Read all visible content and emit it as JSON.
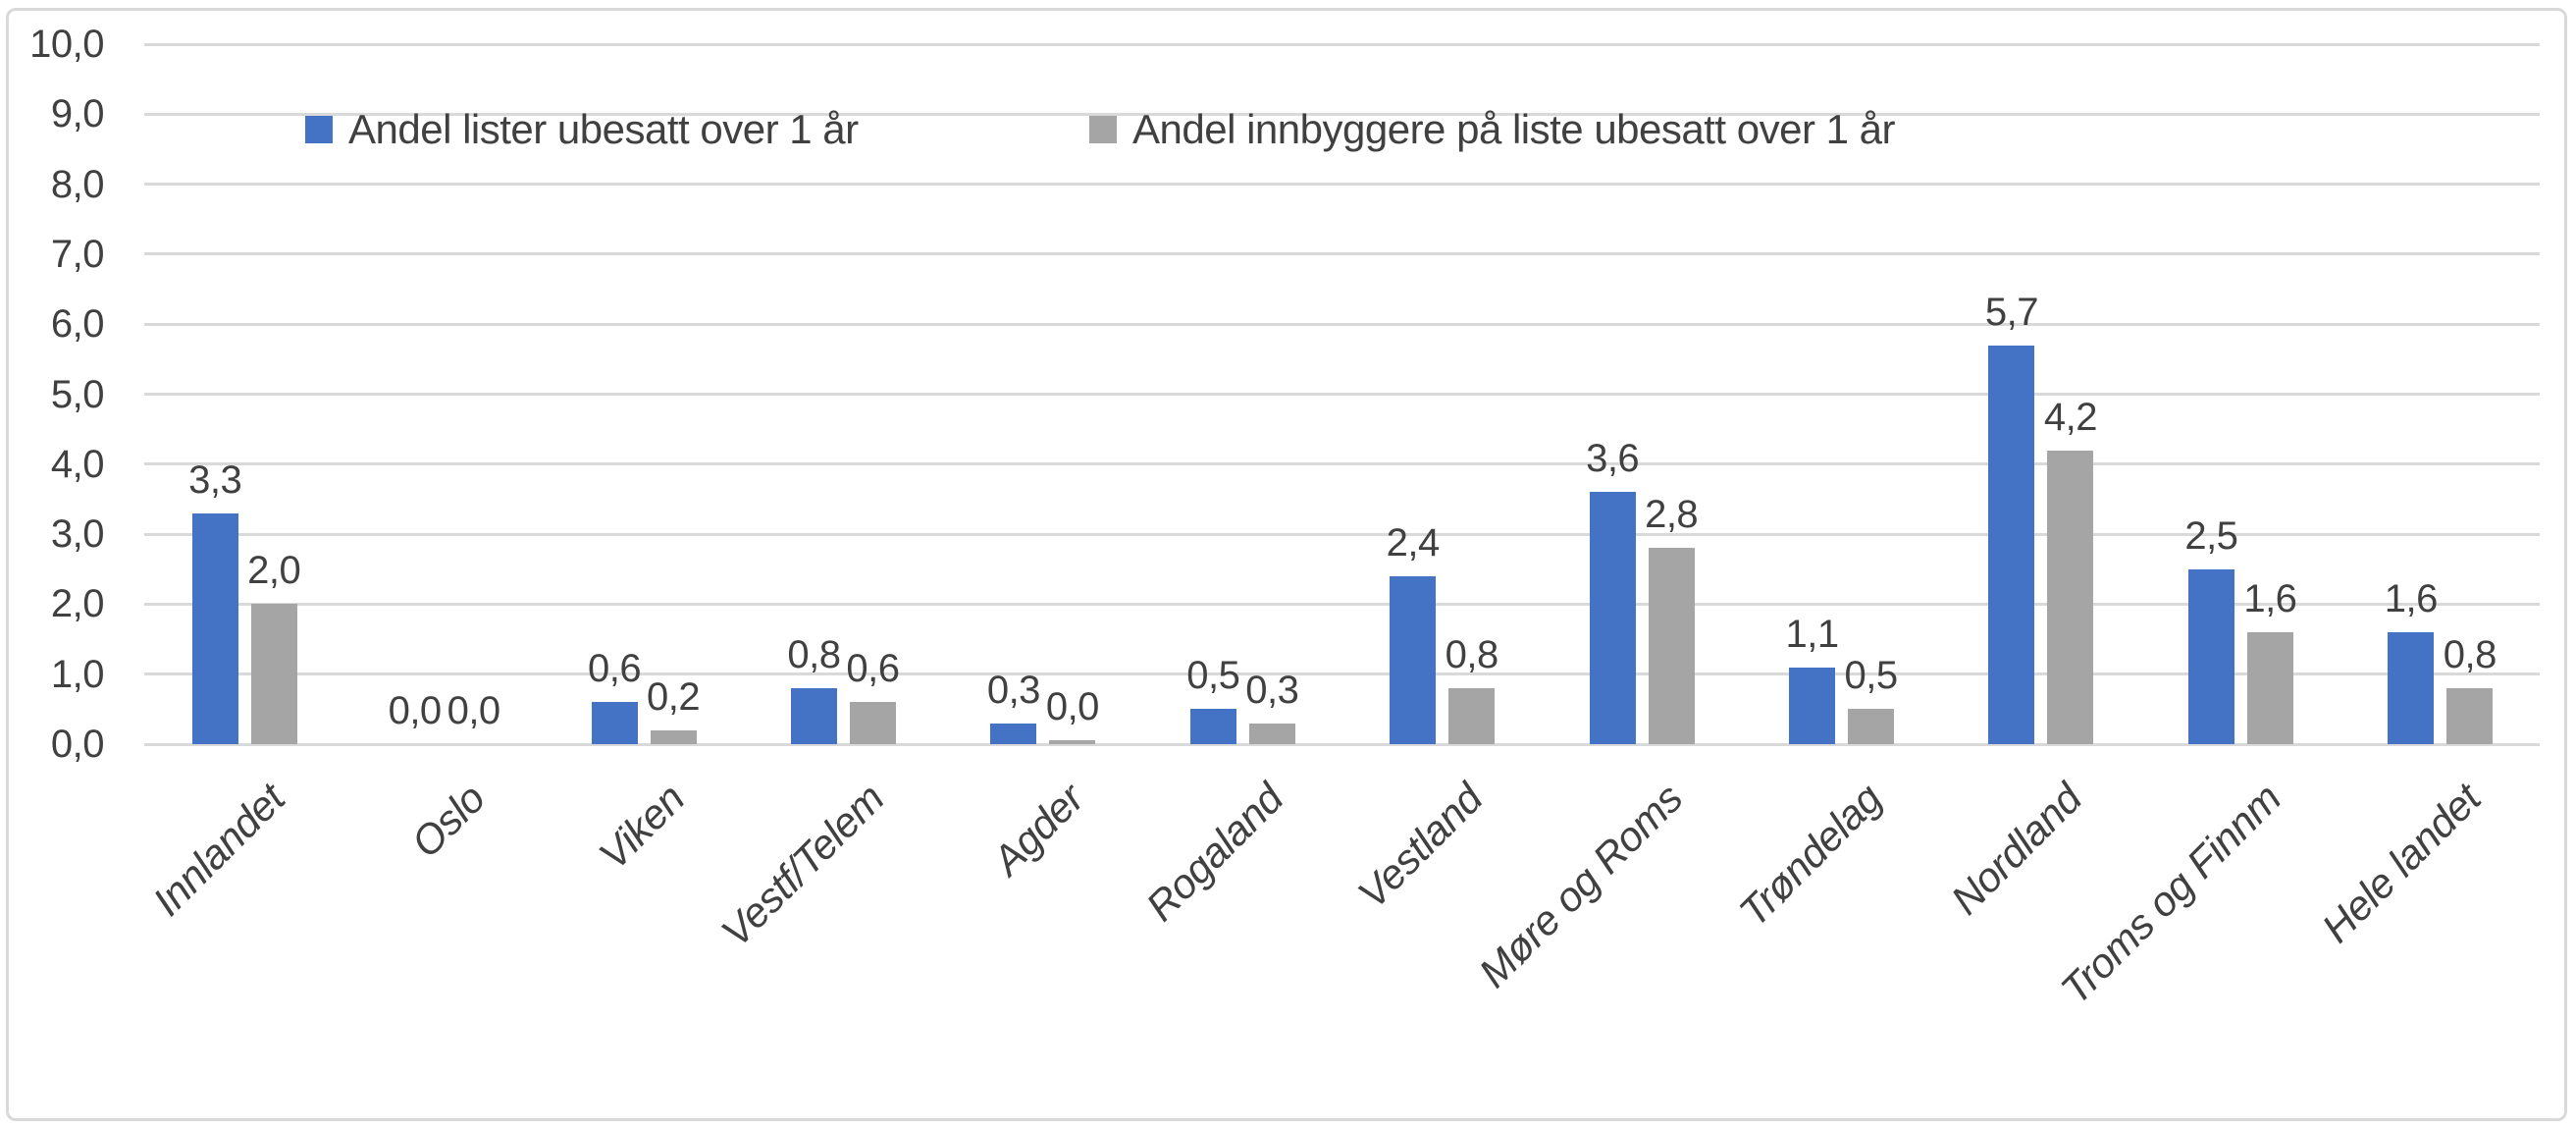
{
  "chart_data": {
    "type": "bar",
    "categories": [
      "Innlandet",
      "Oslo",
      "Viken",
      "Vestf/Telem",
      "Agder",
      "Rogaland",
      "Vestland",
      "Møre og Roms",
      "Trøndelag",
      "Nordland",
      "Troms og Finnm",
      "Hele landet"
    ],
    "series": [
      {
        "name": "Andel lister ubesatt over 1 år",
        "color": "#4472C4",
        "values": [
          3.3,
          0.0,
          0.6,
          0.8,
          0.3,
          0.5,
          2.4,
          3.6,
          1.1,
          5.7,
          2.5,
          1.6
        ],
        "labels": [
          "3,3",
          "0,0",
          "0,6",
          "0,8",
          "0,3",
          "0,5",
          "2,4",
          "3,6",
          "1,1",
          "5,7",
          "2,5",
          "1,6"
        ]
      },
      {
        "name": "Andel innbyggere på liste ubesatt over 1 år",
        "color": "#A5A5A5",
        "values": [
          2.0,
          0.0,
          0.2,
          0.6,
          0.05,
          0.3,
          0.8,
          2.8,
          0.5,
          4.2,
          1.6,
          0.8
        ],
        "labels": [
          "2,0",
          "0,0",
          "0,2",
          "0,6",
          "0,0",
          "0,3",
          "0,8",
          "2,8",
          "0,5",
          "4,2",
          "1,6",
          "0,8"
        ]
      }
    ],
    "y_axis": {
      "min": 0,
      "max": 10,
      "step": 1,
      "tick_labels": [
        "0,0",
        "1,0",
        "2,0",
        "3,0",
        "4,0",
        "5,0",
        "6,0",
        "7,0",
        "8,0",
        "9,0",
        "10,0"
      ]
    },
    "grid": true,
    "legend_position": "top",
    "decimal_separator": ",",
    "colors": {
      "series1": "#4472C4",
      "series2": "#A5A5A5",
      "gridline": "#D9D9D9",
      "frame": "#D9D9D9",
      "text": "#404040"
    }
  }
}
